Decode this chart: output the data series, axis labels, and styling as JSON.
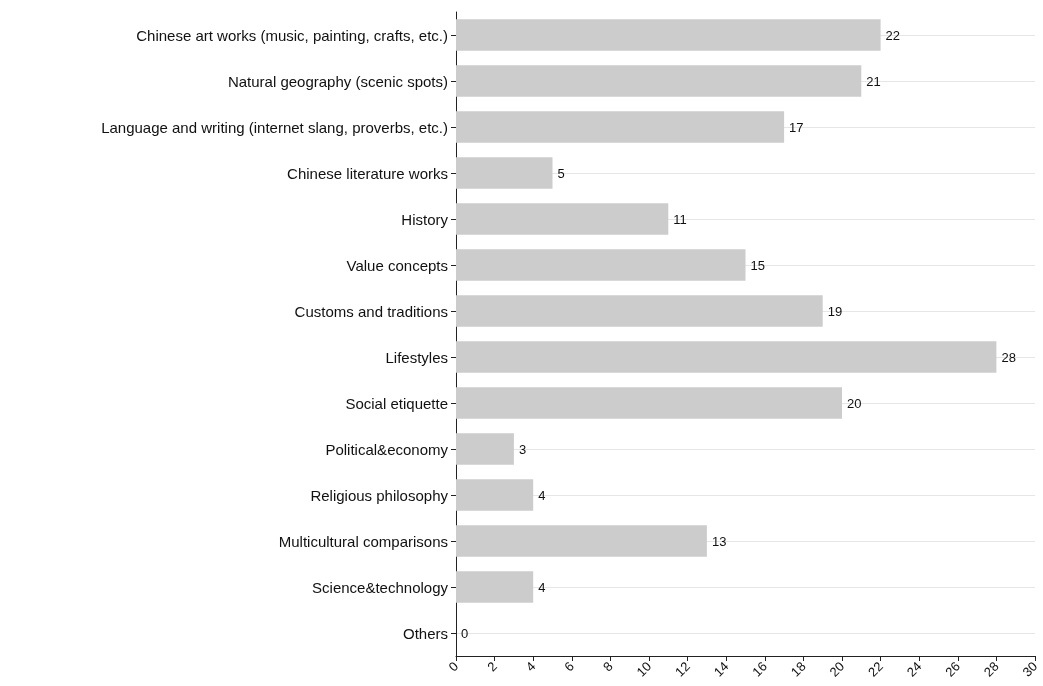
{
  "chart_data": {
    "type": "bar",
    "orientation": "horizontal",
    "categories": [
      "Chinese art works (music, painting, crafts, etc.)",
      "Natural geography (scenic spots)",
      "Language and writing (internet slang, proverbs, etc.)",
      "Chinese literature works",
      "History",
      "Value concepts",
      "Customs and traditions",
      "Lifestyles",
      "Social etiquette",
      "Political&economy",
      "Religious philosophy",
      "Multicultural comparisons",
      "Science&technology",
      "Others"
    ],
    "values": [
      22,
      21,
      17,
      5,
      11,
      15,
      19,
      28,
      20,
      3,
      4,
      13,
      4,
      0
    ],
    "color": "#cccccc",
    "data_labels": true,
    "grid": "y",
    "xlim": [
      0,
      30
    ],
    "xticks": [
      0,
      2,
      4,
      6,
      8,
      10,
      12,
      14,
      16,
      18,
      20,
      22,
      24,
      26,
      28,
      30
    ]
  }
}
